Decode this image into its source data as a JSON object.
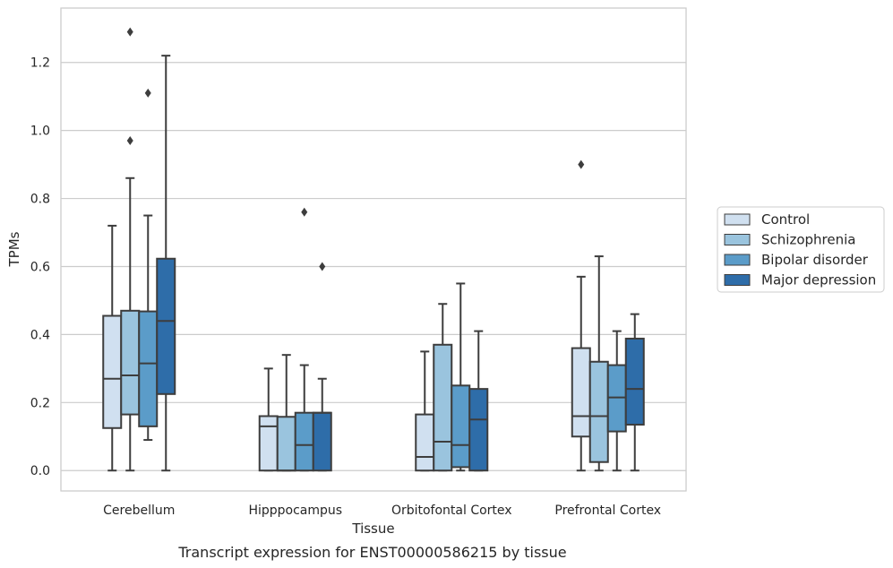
{
  "chart_data": {
    "type": "box",
    "xlabel": "Tissue",
    "ylabel": "TPMs",
    "caption": "Transcript expression for ENST00000586215 by tissue",
    "ylim": [
      -0.06,
      1.36
    ],
    "yticks": [
      0.0,
      0.2,
      0.4,
      0.6,
      0.8,
      1.0,
      1.2
    ],
    "ytick_labels": [
      "0.0",
      "0.2",
      "0.4",
      "0.6",
      "0.8",
      "1.0",
      "1.2"
    ],
    "grid": "horizontal",
    "legend_position": "right",
    "categories": [
      "Cerebellum",
      "Hipppocampus",
      "Orbitofontal Cortex",
      "Prefrontal Cortex"
    ],
    "series": [
      {
        "name": "Control",
        "color": "#d0e0f0",
        "boxes": [
          {
            "whislo": 0.0,
            "q1": 0.125,
            "med": 0.27,
            "q3": 0.455,
            "whishi": 0.72,
            "fliers": []
          },
          {
            "whislo": 0.0,
            "q1": 0.0,
            "med": 0.13,
            "q3": 0.16,
            "whishi": 0.3,
            "fliers": []
          },
          {
            "whislo": 0.0,
            "q1": 0.0,
            "med": 0.04,
            "q3": 0.165,
            "whishi": 0.35,
            "fliers": []
          },
          {
            "whislo": 0.0,
            "q1": 0.1,
            "med": 0.16,
            "q3": 0.36,
            "whishi": 0.57,
            "fliers": [
              0.9
            ]
          }
        ]
      },
      {
        "name": "Schizophrenia",
        "color": "#9ac4de",
        "boxes": [
          {
            "whislo": 0.0,
            "q1": 0.165,
            "med": 0.28,
            "q3": 0.47,
            "whishi": 0.86,
            "fliers": [
              0.97,
              1.29
            ]
          },
          {
            "whislo": 0.0,
            "q1": 0.0,
            "med": 0.0,
            "q3": 0.158,
            "whishi": 0.34,
            "fliers": []
          },
          {
            "whislo": 0.0,
            "q1": 0.0,
            "med": 0.085,
            "q3": 0.37,
            "whishi": 0.49,
            "fliers": []
          },
          {
            "whislo": 0.0,
            "q1": 0.025,
            "med": 0.16,
            "q3": 0.32,
            "whishi": 0.63,
            "fliers": []
          }
        ]
      },
      {
        "name": "Bipolar disorder",
        "color": "#5b9cc9",
        "boxes": [
          {
            "whislo": 0.09,
            "q1": 0.13,
            "med": 0.315,
            "q3": 0.468,
            "whishi": 0.75,
            "fliers": [
              1.11
            ]
          },
          {
            "whislo": 0.0,
            "q1": 0.0,
            "med": 0.075,
            "q3": 0.17,
            "whishi": 0.31,
            "fliers": [
              0.76
            ]
          },
          {
            "whislo": 0.0,
            "q1": 0.01,
            "med": 0.075,
            "q3": 0.25,
            "whishi": 0.55,
            "fliers": []
          },
          {
            "whislo": 0.0,
            "q1": 0.115,
            "med": 0.215,
            "q3": 0.31,
            "whishi": 0.41,
            "fliers": []
          }
        ]
      },
      {
        "name": "Major depression",
        "color": "#2e6da9",
        "boxes": [
          {
            "whislo": 0.0,
            "q1": 0.225,
            "med": 0.44,
            "q3": 0.623,
            "whishi": 1.22,
            "fliers": []
          },
          {
            "whislo": 0.0,
            "q1": 0.0,
            "med": 0.17,
            "q3": 0.17,
            "whishi": 0.27,
            "fliers": [
              0.6
            ]
          },
          {
            "whislo": 0.0,
            "q1": 0.0,
            "med": 0.15,
            "q3": 0.24,
            "whishi": 0.41,
            "fliers": []
          },
          {
            "whislo": 0.0,
            "q1": 0.135,
            "med": 0.24,
            "q3": 0.388,
            "whishi": 0.46,
            "fliers": []
          }
        ]
      }
    ]
  }
}
